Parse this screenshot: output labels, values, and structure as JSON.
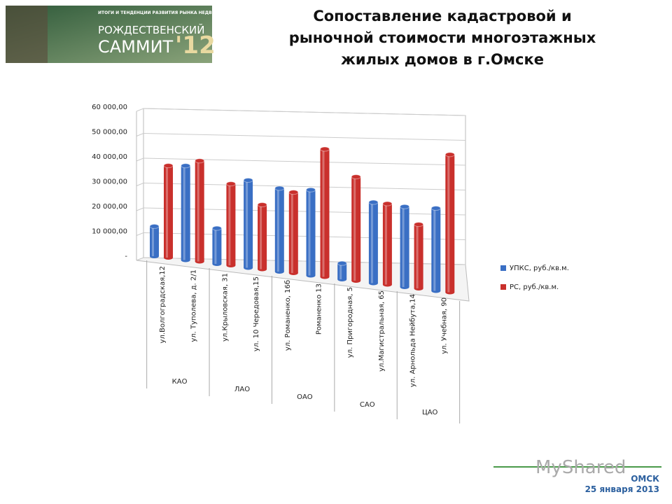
{
  "header": {
    "banner_line": "ИТОГИ И ТЕНДЕНЦИИ РАЗВИТИЯ РЫНКА НЕДВИЖИМОСТИ",
    "banner_name": "РОЖДЕСТВЕНСКИЙ",
    "banner_name2": "САММИТ",
    "banner_year": "'12"
  },
  "footer": {
    "city": "ОМСК",
    "date": "25 января 2013",
    "watermark": "MyShared"
  },
  "chart_data": {
    "type": "bar3d",
    "title": "Сопоставление кадастровой и рыночной стоимости многоэтажных жилых домов в г.Омске",
    "categories": [
      "ул.Волгоградская,12",
      "ул. Туполева, д. 2/1",
      "ул.Крыловская, 31",
      "ул. 10 Чередовая,15",
      "ул. Романенко, 16б",
      "Романенко 13",
      "ул. Пригородная, 5",
      "ул.Магистральная, 65",
      "ул. Арнольда Нейбута,14",
      "ул. Учебная, 90"
    ],
    "category_groups": [
      "КАО",
      null,
      "ЛАО",
      null,
      "ОАО",
      null,
      "САО",
      null,
      "ЦАО",
      null
    ],
    "series": [
      {
        "name": "УПКС, руб./кв.м.",
        "color": "#3a6fc4",
        "values": [
          12000,
          37500,
          14000,
          34000,
          32000,
          32500,
          6000,
          30000,
          29500,
          30000
        ]
      },
      {
        "name": "РС, руб./кв.м.",
        "color": "#c9302c",
        "values": [
          37000,
          40000,
          32000,
          25000,
          31000,
          48500,
          39000,
          30000,
          23500,
          50000
        ]
      }
    ],
    "ylim": [
      0,
      60000
    ],
    "yticks": [
      {
        "value": 0,
        "label": "-"
      },
      {
        "value": 10000,
        "label": "10 000,00"
      },
      {
        "value": 20000,
        "label": "20 000,00"
      },
      {
        "value": 30000,
        "label": "30 000,00"
      },
      {
        "value": 40000,
        "label": "40 000,00"
      },
      {
        "value": 50000,
        "label": "50 000,00"
      },
      {
        "value": 60000,
        "label": "60 000,00"
      }
    ],
    "grid": true,
    "legend": "right"
  }
}
